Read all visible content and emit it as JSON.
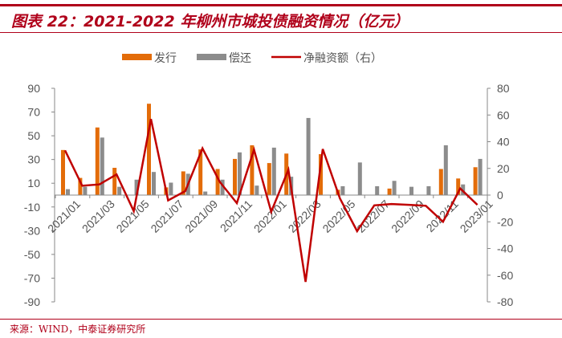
{
  "title": "图表 22：2021-2022 年柳州市城投债融资情况（亿元）",
  "source": "来源：WIND，中泰证券研究所",
  "colors": {
    "issuance": "#e36c09",
    "repayment": "#8c8c8c",
    "net": "#c00000",
    "accent": "#b0001a"
  },
  "chart_data": {
    "type": "bar+line",
    "legend_position": "top",
    "grid": false,
    "categories": [
      "2021/01",
      "2021/02",
      "2021/03",
      "2021/04",
      "2021/05",
      "2021/06",
      "2021/07",
      "2021/08",
      "2021/09",
      "2021/10",
      "2021/11",
      "2021/12",
      "2022/01",
      "2022/02",
      "2022/03",
      "2022/04",
      "2022/05",
      "2022/06",
      "2022/07",
      "2022/08",
      "2022/09",
      "2022/10",
      "2022/11",
      "2022/12",
      "2023/01"
    ],
    "x_tick_labels": [
      "2021/01",
      "2021/03",
      "2021/05",
      "2021/07",
      "2021/09",
      "2021/11",
      "2022/01",
      "2022/03",
      "2022/05",
      "2022/07",
      "2022/09",
      "2022/11",
      "2023/01"
    ],
    "left_axis": {
      "ylim": [
        -90,
        90
      ],
      "ticks": [
        90,
        70,
        50,
        30,
        10,
        -10,
        -30,
        -50,
        -70,
        -90
      ]
    },
    "right_axis": {
      "ylim": [
        -80,
        80
      ],
      "ticks": [
        80,
        60,
        40,
        20,
        0,
        -20,
        -40,
        -60,
        -80
      ]
    },
    "series": [
      {
        "name": "发行",
        "type": "bar",
        "axis": "left",
        "values": [
          38,
          14.5,
          57,
          23,
          0,
          77,
          6.5,
          20,
          38.5,
          22,
          30.5,
          42,
          27,
          35,
          0,
          34.5,
          4.5,
          0,
          0,
          5.5,
          0,
          0,
          22,
          14,
          23.5
        ]
      },
      {
        "name": "偿还",
        "type": "bar",
        "axis": "left",
        "values": [
          5,
          7,
          48.5,
          7,
          13,
          19.5,
          10.5,
          18,
          3,
          13,
          36,
          8,
          40,
          15.5,
          65,
          0,
          7.5,
          27.5,
          7.5,
          12,
          7,
          7.5,
          42,
          9,
          30.5
        ]
      },
      {
        "name": "净融资额（右）",
        "type": "line",
        "axis": "right",
        "values": [
          33.5,
          7,
          8,
          15.5,
          -12,
          57,
          -4,
          3,
          35,
          10,
          -6,
          34,
          -12.5,
          19,
          -65,
          34.5,
          -2.5,
          -27,
          -7.7,
          -6.7,
          -7.3,
          -8,
          -20,
          5,
          -7.3
        ]
      }
    ]
  }
}
